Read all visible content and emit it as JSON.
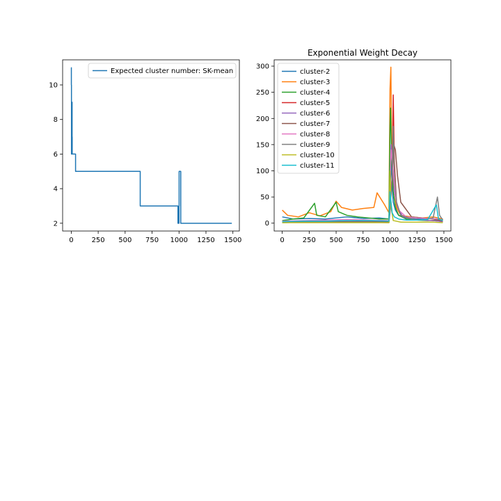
{
  "chart_data": [
    {
      "type": "line",
      "title": "",
      "xlabel": "",
      "ylabel": "",
      "xlim": [
        -80,
        1560
      ],
      "ylim": [
        1.55,
        11.45
      ],
      "xticks": [
        0,
        250,
        500,
        750,
        1000,
        1250,
        1500
      ],
      "yticks": [
        2,
        4,
        6,
        8,
        10
      ],
      "legend_position": "upper right",
      "series": [
        {
          "name": "Expected cluster number: SK-mean",
          "color": "#1f77b4",
          "step": true,
          "x": [
            0,
            1,
            2,
            5,
            8,
            9,
            10,
            40,
            640,
            990,
            1000,
            1001,
            1002,
            1015,
            1016,
            1017,
            1490
          ],
          "y": [
            11,
            10,
            6,
            9,
            7,
            6,
            6,
            5,
            3,
            2,
            3,
            5,
            5,
            5,
            2,
            2,
            2
          ]
        }
      ]
    },
    {
      "type": "line",
      "title": "Exponential Weight Decay",
      "xlabel": "",
      "ylabel": "",
      "xlim": [
        -75,
        1565
      ],
      "ylim": [
        -15,
        312
      ],
      "xticks": [
        0,
        250,
        500,
        750,
        1000,
        1250,
        1500
      ],
      "yticks": [
        0,
        50,
        100,
        150,
        200,
        250,
        300
      ],
      "legend_position": "upper left",
      "series": [
        {
          "name": "cluster-2",
          "color": "#1f77b4",
          "x": [
            0,
            100,
            250,
            400,
            500,
            600,
            750,
            900,
            990,
            1000,
            1010,
            1020,
            1030,
            1050,
            1080,
            1150,
            1250,
            1350,
            1450,
            1490
          ],
          "y": [
            12,
            8,
            9,
            8,
            10,
            12,
            9,
            10,
            8,
            60,
            120,
            70,
            40,
            25,
            15,
            10,
            8,
            9,
            8,
            5
          ]
        },
        {
          "name": "cluster-3",
          "color": "#ff7f0e",
          "x": [
            0,
            50,
            150,
            250,
            350,
            450,
            500,
            550,
            650,
            750,
            850,
            880,
            950,
            990,
            1000,
            1008,
            1015,
            1030,
            1060,
            1100,
            1200,
            1300,
            1400,
            1490
          ],
          "y": [
            25,
            15,
            12,
            20,
            14,
            22,
            42,
            30,
            25,
            28,
            30,
            58,
            35,
            20,
            256,
            298,
            150,
            80,
            30,
            15,
            12,
            10,
            12,
            8
          ]
        },
        {
          "name": "cluster-4",
          "color": "#2ca02c",
          "x": [
            0,
            100,
            200,
            300,
            320,
            400,
            500,
            520,
            600,
            700,
            800,
            900,
            990,
            1000,
            1005,
            1015,
            1030,
            1050,
            1080,
            1150,
            1250,
            1350,
            1450,
            1490
          ],
          "y": [
            5,
            8,
            10,
            38,
            15,
            12,
            40,
            22,
            15,
            12,
            10,
            8,
            8,
            185,
            220,
            120,
            60,
            30,
            15,
            8,
            6,
            5,
            6,
            4
          ]
        },
        {
          "name": "cluster-5",
          "color": "#d62728",
          "x": [
            0,
            200,
            400,
            600,
            800,
            990,
            1000,
            1020,
            1030,
            1040,
            1060,
            1100,
            1200,
            1300,
            1400,
            1490
          ],
          "y": [
            2,
            3,
            3,
            2,
            3,
            2,
            40,
            90,
            245,
            120,
            40,
            15,
            8,
            6,
            5,
            3
          ]
        },
        {
          "name": "cluster-6",
          "color": "#9467bd",
          "x": [
            0,
            200,
            400,
            600,
            800,
            990,
            1000,
            1010,
            1025,
            1040,
            1070,
            1120,
            1200,
            1300,
            1400,
            1490
          ],
          "y": [
            3,
            4,
            3,
            5,
            4,
            3,
            70,
            150,
            110,
            60,
            30,
            12,
            8,
            6,
            5,
            3
          ]
        },
        {
          "name": "cluster-7",
          "color": "#8c564b",
          "x": [
            0,
            200,
            400,
            600,
            800,
            990,
            1000,
            1020,
            1035,
            1050,
            1070,
            1100,
            1200,
            1300,
            1400,
            1490
          ],
          "y": [
            2,
            3,
            4,
            3,
            3,
            2,
            30,
            80,
            150,
            140,
            90,
            40,
            12,
            10,
            8,
            4
          ]
        },
        {
          "name": "cluster-8",
          "color": "#e377c2",
          "x": [
            0,
            200,
            400,
            600,
            800,
            990,
            1000,
            1010,
            1030,
            1050,
            1080,
            1150,
            1250,
            1350,
            1450,
            1490
          ],
          "y": [
            4,
            5,
            6,
            7,
            6,
            5,
            80,
            140,
            100,
            50,
            25,
            12,
            10,
            9,
            8,
            5
          ]
        },
        {
          "name": "cluster-9",
          "color": "#7f7f7f",
          "x": [
            0,
            200,
            400,
            600,
            800,
            990,
            1000,
            1020,
            1030,
            1040,
            1060,
            1100,
            1200,
            1300,
            1400,
            1440,
            1460,
            1490
          ],
          "y": [
            1,
            2,
            2,
            2,
            2,
            1,
            20,
            90,
            185,
            100,
            40,
            15,
            8,
            6,
            10,
            50,
            15,
            6
          ]
        },
        {
          "name": "cluster-10",
          "color": "#bcbd22",
          "x": [
            0,
            200,
            400,
            600,
            800,
            990,
            1000,
            1010,
            1030,
            1100,
            1200,
            1300,
            1400,
            1490
          ],
          "y": [
            1,
            1,
            1,
            1,
            1,
            1,
            100,
            30,
            5,
            2,
            2,
            2,
            2,
            1
          ]
        },
        {
          "name": "cluster-11",
          "color": "#17becf",
          "x": [
            0,
            200,
            400,
            600,
            800,
            990,
            1000,
            1010,
            1020,
            1040,
            1080,
            1150,
            1250,
            1350,
            1430,
            1450,
            1490
          ],
          "y": [
            3,
            4,
            4,
            5,
            5,
            4,
            60,
            40,
            20,
            12,
            8,
            6,
            6,
            7,
            35,
            8,
            5
          ]
        }
      ]
    }
  ]
}
